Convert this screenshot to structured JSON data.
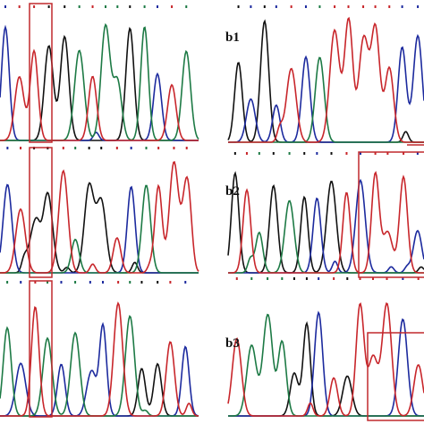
{
  "panels": [
    {
      "label": "b1"
    },
    {
      "label": "b2"
    },
    {
      "label": "b3"
    }
  ]
}
